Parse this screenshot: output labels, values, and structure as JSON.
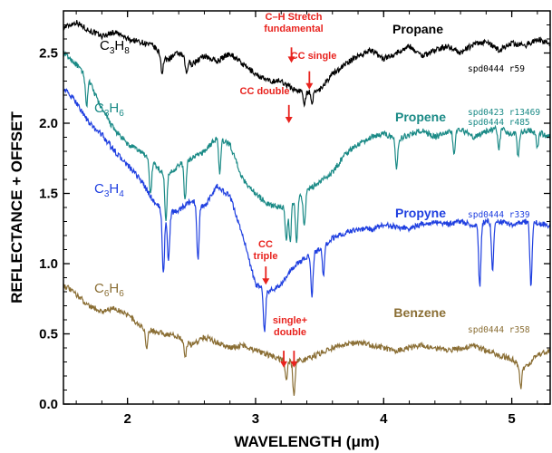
{
  "chart_data": {
    "type": "line",
    "title": "",
    "xlabel": "WAVELENGTH (μm)",
    "ylabel": "REFLECTANCE + OFFSET",
    "xlim": [
      1.5,
      5.3
    ],
    "ylim": [
      0.0,
      2.8
    ],
    "x_ticks": [
      "2",
      "3",
      "4",
      "5"
    ],
    "y_ticks": [
      "0.0",
      "0.5",
      "1.0",
      "1.5",
      "2.0",
      "2.5"
    ],
    "grid": false,
    "series": [
      {
        "molecule": "C3H8",
        "molecule_base": "C",
        "sub1": "3",
        "mid": "H",
        "sub2": "8",
        "name": "Propane",
        "ref_lines": [
          "spd0444 r59"
        ],
        "color": "#000000",
        "points": [
          [
            1.5,
            2.68
          ],
          [
            1.6,
            2.72
          ],
          [
            1.7,
            2.66
          ],
          [
            1.8,
            2.62
          ],
          [
            1.9,
            2.65
          ],
          [
            2.0,
            2.6
          ],
          [
            2.1,
            2.58
          ],
          [
            2.2,
            2.55
          ],
          [
            2.3,
            2.45
          ],
          [
            2.4,
            2.5
          ],
          [
            2.5,
            2.42
          ],
          [
            2.6,
            2.48
          ],
          [
            2.7,
            2.44
          ],
          [
            2.8,
            2.5
          ],
          [
            2.9,
            2.42
          ],
          [
            3.0,
            2.35
          ],
          [
            3.1,
            2.3
          ],
          [
            3.2,
            2.3
          ],
          [
            3.3,
            2.24
          ],
          [
            3.4,
            2.22
          ],
          [
            3.5,
            2.24
          ],
          [
            3.6,
            2.35
          ],
          [
            3.7,
            2.42
          ],
          [
            3.8,
            2.48
          ],
          [
            3.9,
            2.52
          ],
          [
            4.0,
            2.46
          ],
          [
            4.1,
            2.5
          ],
          [
            4.2,
            2.55
          ],
          [
            4.3,
            2.48
          ],
          [
            4.4,
            2.52
          ],
          [
            4.5,
            2.55
          ],
          [
            4.6,
            2.5
          ],
          [
            4.7,
            2.56
          ],
          [
            4.8,
            2.58
          ],
          [
            4.9,
            2.52
          ],
          [
            5.0,
            2.57
          ],
          [
            5.1,
            2.55
          ],
          [
            5.2,
            2.6
          ],
          [
            5.3,
            2.56
          ]
        ],
        "dips": [
          [
            2.27,
            0.12
          ],
          [
            2.46,
            0.1
          ],
          [
            3.38,
            0.08
          ],
          [
            3.44,
            0.1
          ]
        ]
      },
      {
        "molecule": "C3H6",
        "molecule_base": "C",
        "sub1": "3",
        "mid": "H",
        "sub2": "6",
        "name": "Propene",
        "ref_lines": [
          "spd0423 r13469",
          "spd0444 r485"
        ],
        "color": "#1a8a86",
        "points": [
          [
            1.5,
            2.5
          ],
          [
            1.6,
            2.42
          ],
          [
            1.7,
            2.3
          ],
          [
            1.8,
            2.1
          ],
          [
            1.9,
            1.95
          ],
          [
            2.0,
            1.85
          ],
          [
            2.1,
            1.8
          ],
          [
            2.2,
            1.72
          ],
          [
            2.3,
            1.62
          ],
          [
            2.4,
            1.7
          ],
          [
            2.5,
            1.75
          ],
          [
            2.6,
            1.8
          ],
          [
            2.7,
            1.9
          ],
          [
            2.8,
            1.85
          ],
          [
            2.9,
            1.6
          ],
          [
            3.0,
            1.5
          ],
          [
            3.1,
            1.42
          ],
          [
            3.2,
            1.4
          ],
          [
            3.3,
            1.45
          ],
          [
            3.4,
            1.52
          ],
          [
            3.5,
            1.58
          ],
          [
            3.6,
            1.65
          ],
          [
            3.7,
            1.78
          ],
          [
            3.8,
            1.85
          ],
          [
            3.9,
            1.9
          ],
          [
            4.0,
            1.93
          ],
          [
            4.1,
            1.88
          ],
          [
            4.2,
            1.92
          ],
          [
            4.3,
            1.95
          ],
          [
            4.4,
            1.9
          ],
          [
            4.5,
            1.94
          ],
          [
            4.6,
            1.96
          ],
          [
            4.7,
            1.9
          ],
          [
            4.8,
            1.94
          ],
          [
            4.9,
            1.97
          ],
          [
            5.0,
            1.92
          ],
          [
            5.1,
            1.95
          ],
          [
            5.2,
            1.94
          ],
          [
            5.3,
            1.9
          ]
        ],
        "dips": [
          [
            1.68,
            0.2
          ],
          [
            2.18,
            0.25
          ],
          [
            2.3,
            0.3
          ],
          [
            2.45,
            0.28
          ],
          [
            2.72,
            0.25
          ],
          [
            3.24,
            0.25
          ],
          [
            3.27,
            0.28
          ],
          [
            3.32,
            0.3
          ],
          [
            3.38,
            0.25
          ],
          [
            4.1,
            0.2
          ],
          [
            4.55,
            0.18
          ],
          [
            4.9,
            0.15
          ],
          [
            5.05,
            0.18
          ],
          [
            5.2,
            0.12
          ]
        ]
      },
      {
        "molecule": "C3H4",
        "molecule_base": "C",
        "sub1": "3",
        "mid": "H",
        "sub2": "4",
        "name": "Propyne",
        "ref_lines": [
          "spd0444 r339"
        ],
        "color": "#1f3fe0",
        "points": [
          [
            1.5,
            2.25
          ],
          [
            1.6,
            2.15
          ],
          [
            1.7,
            2.0
          ],
          [
            1.8,
            1.92
          ],
          [
            1.9,
            1.8
          ],
          [
            2.0,
            1.7
          ],
          [
            2.1,
            1.6
          ],
          [
            2.2,
            1.45
          ],
          [
            2.3,
            1.35
          ],
          [
            2.4,
            1.38
          ],
          [
            2.5,
            1.45
          ],
          [
            2.6,
            1.4
          ],
          [
            2.7,
            1.55
          ],
          [
            2.8,
            1.48
          ],
          [
            2.9,
            1.2
          ],
          [
            3.0,
            0.85
          ],
          [
            3.1,
            0.8
          ],
          [
            3.2,
            0.85
          ],
          [
            3.3,
            0.98
          ],
          [
            3.4,
            1.05
          ],
          [
            3.5,
            1.1
          ],
          [
            3.6,
            1.18
          ],
          [
            3.7,
            1.22
          ],
          [
            3.8,
            1.25
          ],
          [
            3.9,
            1.24
          ],
          [
            4.0,
            1.28
          ],
          [
            4.1,
            1.26
          ],
          [
            4.2,
            1.25
          ],
          [
            4.3,
            1.28
          ],
          [
            4.4,
            1.3
          ],
          [
            4.5,
            1.28
          ],
          [
            4.6,
            1.3
          ],
          [
            4.7,
            1.27
          ],
          [
            4.8,
            1.3
          ],
          [
            4.9,
            1.3
          ],
          [
            5.0,
            1.28
          ],
          [
            5.1,
            1.3
          ],
          [
            5.2,
            1.29
          ],
          [
            5.3,
            1.27
          ]
        ],
        "dips": [
          [
            2.28,
            0.45
          ],
          [
            2.32,
            0.35
          ],
          [
            2.55,
            0.4
          ],
          [
            3.07,
            0.3
          ],
          [
            3.44,
            0.3
          ],
          [
            3.53,
            0.2
          ],
          [
            4.75,
            0.45
          ],
          [
            4.85,
            0.35
          ],
          [
            5.15,
            0.45
          ]
        ]
      },
      {
        "molecule": "C6H6",
        "molecule_base": "C",
        "sub1": "6",
        "mid": "H",
        "sub2": "6",
        "name": "Benzene",
        "ref_lines": [
          "spd0444 r358"
        ],
        "color": "#8a6e34",
        "points": [
          [
            1.5,
            0.85
          ],
          [
            1.6,
            0.78
          ],
          [
            1.7,
            0.7
          ],
          [
            1.8,
            0.66
          ],
          [
            1.9,
            0.68
          ],
          [
            2.0,
            0.64
          ],
          [
            2.1,
            0.55
          ],
          [
            2.2,
            0.52
          ],
          [
            2.3,
            0.5
          ],
          [
            2.4,
            0.48
          ],
          [
            2.5,
            0.42
          ],
          [
            2.6,
            0.48
          ],
          [
            2.7,
            0.44
          ],
          [
            2.8,
            0.4
          ],
          [
            2.9,
            0.42
          ],
          [
            3.0,
            0.38
          ],
          [
            3.1,
            0.35
          ],
          [
            3.2,
            0.32
          ],
          [
            3.3,
            0.3
          ],
          [
            3.4,
            0.32
          ],
          [
            3.5,
            0.36
          ],
          [
            3.6,
            0.4
          ],
          [
            3.7,
            0.42
          ],
          [
            3.8,
            0.44
          ],
          [
            3.9,
            0.42
          ],
          [
            4.0,
            0.4
          ],
          [
            4.1,
            0.38
          ],
          [
            4.2,
            0.4
          ],
          [
            4.3,
            0.42
          ],
          [
            4.4,
            0.4
          ],
          [
            4.5,
            0.38
          ],
          [
            4.6,
            0.4
          ],
          [
            4.7,
            0.42
          ],
          [
            4.8,
            0.38
          ],
          [
            4.9,
            0.35
          ],
          [
            5.0,
            0.32
          ],
          [
            5.1,
            0.25
          ],
          [
            5.2,
            0.35
          ],
          [
            5.3,
            0.38
          ]
        ],
        "dips": [
          [
            2.15,
            0.15
          ],
          [
            2.45,
            0.12
          ],
          [
            3.24,
            0.15
          ],
          [
            3.3,
            0.25
          ],
          [
            5.07,
            0.15
          ]
        ]
      }
    ],
    "annotations": [
      {
        "lines": [
          "C–H Stretch",
          "fundamental"
        ],
        "arrow_x": 3.28,
        "arrow_top": 2.54,
        "arrow_bottom": 2.43
      },
      {
        "lines": [
          "CC single"
        ],
        "arrow_x": 3.42,
        "arrow_top": 2.37,
        "arrow_bottom": 2.24
      },
      {
        "lines": [
          "CC double"
        ],
        "arrow_x": 3.26,
        "arrow_top": 2.13,
        "arrow_bottom": 2.0
      },
      {
        "lines": [
          "CC",
          "triple"
        ],
        "arrow_x": 3.08,
        "arrow_top": 0.98,
        "arrow_bottom": 0.85
      },
      {
        "lines": [
          "single+",
          "double"
        ],
        "arrow_x": 3.3,
        "arrow_top": 0.38,
        "arrow_bottom": 0.26
      }
    ]
  }
}
